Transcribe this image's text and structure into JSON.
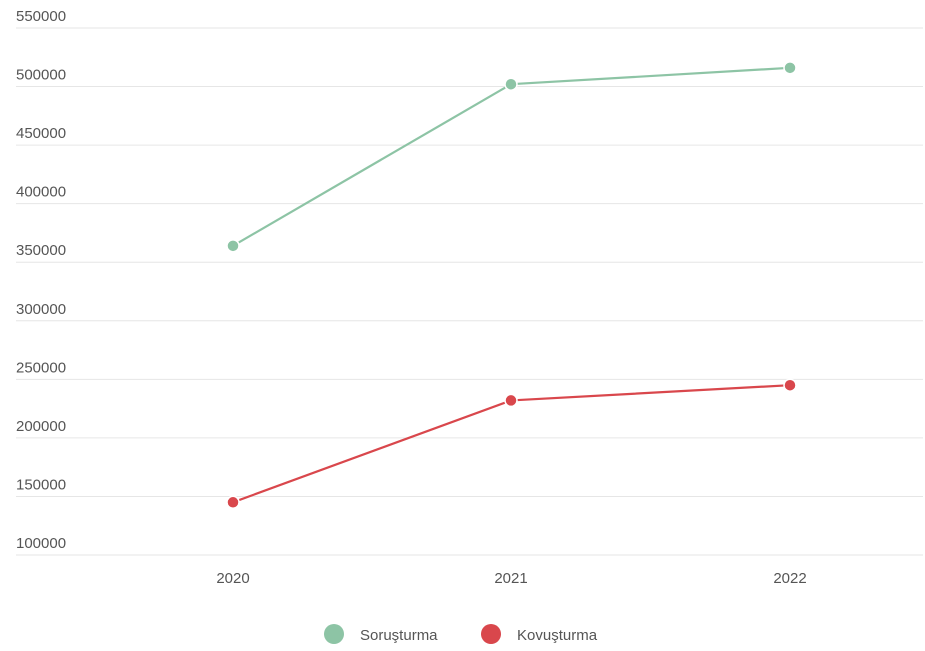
{
  "chart_data": {
    "type": "line",
    "title": "",
    "xlabel": "",
    "ylabel": "",
    "categories": [
      "2020",
      "2021",
      "2022"
    ],
    "ylim": [
      100000,
      550000
    ],
    "yticks": [
      "100000",
      "150000",
      "200000",
      "250000",
      "300000",
      "350000",
      "400000",
      "450000",
      "500000",
      "550000"
    ],
    "grid": true,
    "legend_position": "bottom-center",
    "series": [
      {
        "name": "Soruşturma",
        "color": "#8dc4a5",
        "values": [
          364000,
          502000,
          516000
        ]
      },
      {
        "name": "Kovuşturma",
        "color": "#d9474c",
        "values": [
          145000,
          232000,
          245000
        ]
      }
    ]
  }
}
